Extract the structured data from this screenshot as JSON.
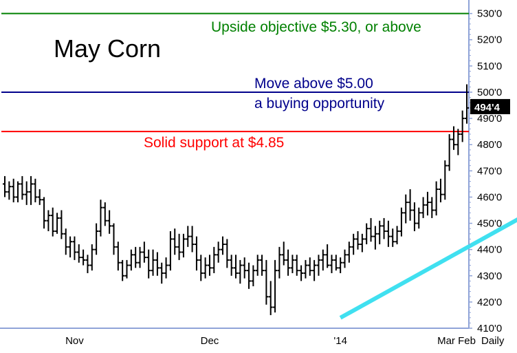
{
  "chart_data": {
    "type": "bar",
    "subtype": "ohlc",
    "title": "May Corn",
    "periodicity": "Daily",
    "x_axis": {
      "tick_labels": [
        "Nov",
        "Dec",
        "'14",
        "Feb",
        "Mar"
      ]
    },
    "y_axis": {
      "tick_labels": [
        "530'0",
        "520'0",
        "510'0",
        "500'0",
        "490'0",
        "480'0",
        "470'0",
        "460'0",
        "450'0",
        "440'0",
        "430'0",
        "420'0",
        "410'0"
      ],
      "ylim": [
        410,
        532
      ],
      "position": "right"
    },
    "last_price_label": "494'4",
    "last_price": 494.5,
    "horizontal_lines": [
      {
        "value": 530,
        "color": "#008000",
        "label": "Upside objective $5.30, or above"
      },
      {
        "value": 500,
        "color": "#00008b",
        "label": "Move above $5.00",
        "label2": "a buying opportunity"
      },
      {
        "value": 485,
        "color": "#ff0000",
        "label": "Solid support at $4.85"
      }
    ],
    "trendline": {
      "color": "#40e0f0",
      "start": {
        "index": 77,
        "value": 414
      },
      "end": {
        "index": 128,
        "value": 461
      }
    },
    "bars": [
      [
        465,
        468,
        460,
        462
      ],
      [
        462,
        466,
        459,
        464
      ],
      [
        464,
        467,
        458,
        460
      ],
      [
        460,
        466,
        458,
        465
      ],
      [
        465,
        468,
        459,
        461
      ],
      [
        461,
        466,
        457,
        462
      ],
      [
        462,
        468,
        457,
        465
      ],
      [
        465,
        467,
        458,
        460
      ],
      [
        460,
        463,
        457,
        459
      ],
      [
        459,
        460,
        448,
        451
      ],
      [
        451,
        455,
        447,
        453
      ],
      [
        453,
        456,
        445,
        447
      ],
      [
        447,
        454,
        446,
        452
      ],
      [
        452,
        455,
        444,
        446
      ],
      [
        446,
        448,
        438,
        441
      ],
      [
        441,
        445,
        437,
        443
      ],
      [
        443,
        445,
        436,
        439
      ],
      [
        439,
        442,
        435,
        437
      ],
      [
        437,
        440,
        434,
        436
      ],
      [
        436,
        438,
        431,
        434
      ],
      [
        434,
        442,
        432,
        440
      ],
      [
        440,
        450,
        438,
        447
      ],
      [
        447,
        459,
        445,
        456
      ],
      [
        456,
        458,
        449,
        451
      ],
      [
        451,
        455,
        446,
        449
      ],
      [
        449,
        450,
        438,
        441
      ],
      [
        441,
        443,
        432,
        435
      ],
      [
        435,
        436,
        428,
        430
      ],
      [
        430,
        436,
        429,
        434
      ],
      [
        434,
        440,
        432,
        438
      ],
      [
        438,
        441,
        433,
        435
      ],
      [
        435,
        441,
        433,
        439
      ],
      [
        439,
        443,
        435,
        437
      ],
      [
        437,
        440,
        429,
        432
      ],
      [
        432,
        440,
        430,
        436
      ],
      [
        436,
        439,
        430,
        433
      ],
      [
        433,
        435,
        427,
        431
      ],
      [
        431,
        437,
        429,
        434
      ],
      [
        434,
        447,
        432,
        444
      ],
      [
        444,
        448,
        438,
        441
      ],
      [
        441,
        446,
        436,
        439
      ],
      [
        439,
        446,
        437,
        444
      ],
      [
        444,
        449,
        441,
        445
      ],
      [
        445,
        449,
        439,
        442
      ],
      [
        442,
        445,
        432,
        436
      ],
      [
        436,
        438,
        428,
        431
      ],
      [
        431,
        437,
        429,
        434
      ],
      [
        434,
        438,
        430,
        433
      ],
      [
        433,
        441,
        431,
        438
      ],
      [
        438,
        443,
        435,
        440
      ],
      [
        440,
        445,
        438,
        442
      ],
      [
        442,
        444,
        433,
        436
      ],
      [
        436,
        438,
        430,
        433
      ],
      [
        433,
        438,
        429,
        431
      ],
      [
        431,
        436,
        427,
        434
      ],
      [
        434,
        437,
        429,
        432
      ],
      [
        432,
        435,
        425,
        428
      ],
      [
        428,
        434,
        426,
        432
      ],
      [
        432,
        438,
        430,
        436
      ],
      [
        436,
        438,
        430,
        432
      ],
      [
        432,
        436,
        419,
        422
      ],
      [
        422,
        428,
        415,
        418
      ],
      [
        418,
        436,
        416,
        432
      ],
      [
        432,
        441,
        429,
        438
      ],
      [
        438,
        443,
        434,
        436
      ],
      [
        436,
        440,
        430,
        433
      ],
      [
        433,
        438,
        431,
        436
      ],
      [
        436,
        438,
        430,
        432
      ],
      [
        432,
        434,
        428,
        431
      ],
      [
        431,
        436,
        429,
        434
      ],
      [
        434,
        437,
        430,
        432
      ],
      [
        432,
        436,
        428,
        434
      ],
      [
        434,
        438,
        430,
        436
      ],
      [
        436,
        440,
        432,
        438
      ],
      [
        438,
        442,
        433,
        434
      ],
      [
        434,
        438,
        431,
        436
      ],
      [
        436,
        438,
        432,
        433
      ],
      [
        433,
        437,
        431,
        435
      ],
      [
        435,
        440,
        433,
        438
      ],
      [
        438,
        443,
        435,
        441
      ],
      [
        441,
        446,
        438,
        444
      ],
      [
        444,
        447,
        440,
        442
      ],
      [
        442,
        446,
        439,
        444
      ],
      [
        444,
        450,
        442,
        448
      ],
      [
        448,
        452,
        443,
        445
      ],
      [
        445,
        449,
        440,
        446
      ],
      [
        446,
        451,
        442,
        449
      ],
      [
        449,
        452,
        444,
        447
      ],
      [
        447,
        451,
        441,
        445
      ],
      [
        445,
        448,
        441,
        443
      ],
      [
        443,
        449,
        442,
        447
      ],
      [
        447,
        456,
        445,
        454
      ],
      [
        454,
        461,
        450,
        458
      ],
      [
        458,
        463,
        451,
        455
      ],
      [
        455,
        458,
        447,
        450
      ],
      [
        450,
        456,
        448,
        454
      ],
      [
        454,
        460,
        452,
        457
      ],
      [
        457,
        462,
        453,
        458
      ],
      [
        458,
        460,
        452,
        455
      ],
      [
        455,
        466,
        453,
        463
      ],
      [
        463,
        467,
        458,
        461
      ],
      [
        461,
        474,
        459,
        472
      ],
      [
        472,
        484,
        470,
        482
      ],
      [
        482,
        487,
        478,
        480
      ],
      [
        480,
        486,
        476,
        484
      ],
      [
        484,
        493,
        481,
        490
      ],
      [
        490,
        503,
        488,
        494
      ]
    ]
  }
}
